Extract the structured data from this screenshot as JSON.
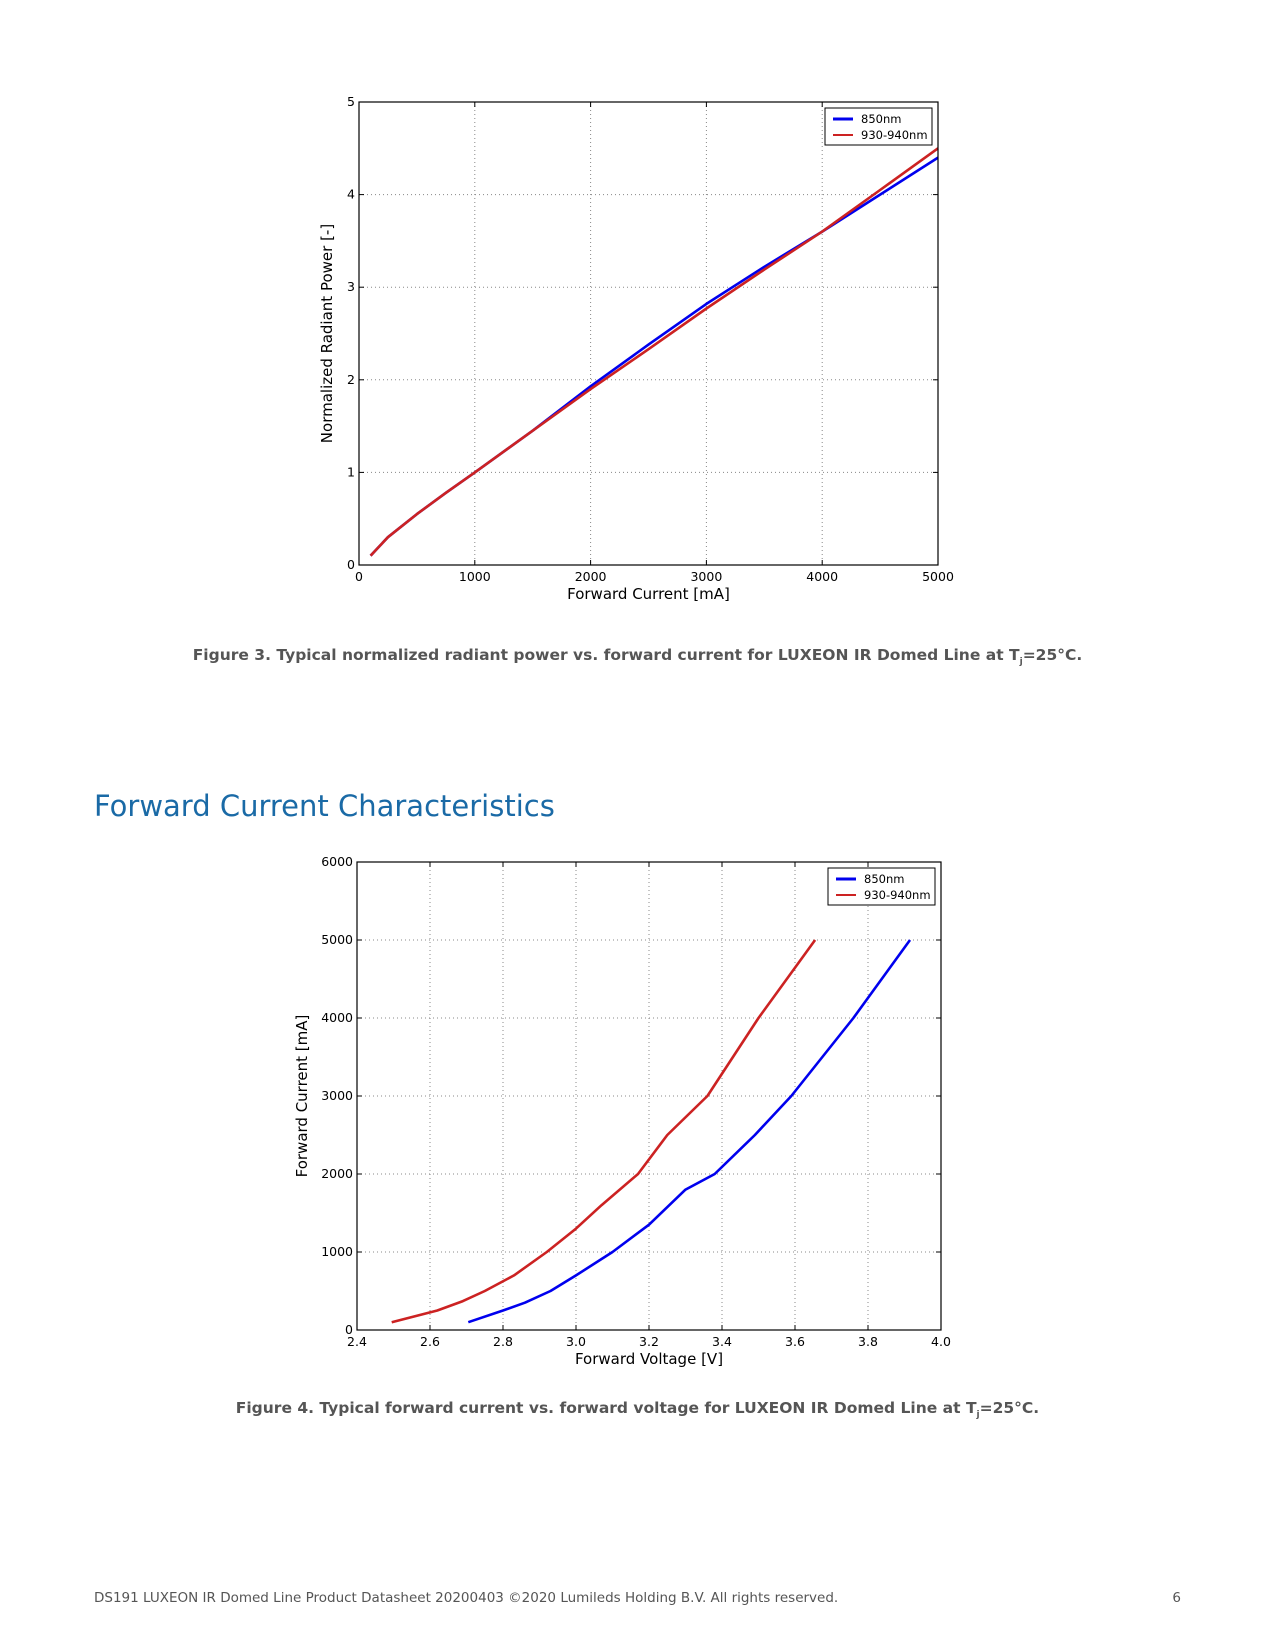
{
  "colors": {
    "accent": "#1a6aa6",
    "caption": "#555555",
    "series_850": "#0000ee",
    "series_930": "#cc2222"
  },
  "section": {
    "title": "Forward Current Characteristics"
  },
  "captions": {
    "fig3": {
      "prefix": "Figure 3. Typical normalized radiant power vs. forward current for LUXEON IR Domed Line at T",
      "sub": "j",
      "suffix": "=25°C."
    },
    "fig4": {
      "prefix": "Figure 4. Typical forward current vs. forward voltage for LUXEON IR Domed Line at T",
      "sub": "j",
      "suffix": "=25°C."
    }
  },
  "footer": {
    "text": "DS191 LUXEON IR Domed Line Product Datasheet  20200403 ©2020 Lumileds Holding B.V. All rights reserved.",
    "page": "6"
  },
  "chart_data": [
    {
      "type": "line",
      "xlabel": "Forward Current [mA]",
      "ylabel": "Normalized Radiant Power [-]",
      "xlim": [
        0,
        5000
      ],
      "ylim": [
        0,
        5
      ],
      "xticks": [
        0,
        1000,
        2000,
        3000,
        4000,
        5000
      ],
      "xtick_labels": [
        "0",
        "1000",
        "2000",
        "3000",
        "4000",
        "5000"
      ],
      "yticks": [
        0,
        1,
        2,
        3,
        4,
        5
      ],
      "ytick_labels": [
        "0",
        "1",
        "2",
        "3",
        "4",
        "5"
      ],
      "grid": true,
      "legend_position": "top-right",
      "series": [
        {
          "name": "850nm",
          "color": "#0000ee",
          "x": [
            100,
            250,
            500,
            750,
            1000,
            1500,
            2000,
            2500,
            3000,
            3500,
            4000,
            4500,
            5000
          ],
          "y": [
            0.1,
            0.3,
            0.55,
            0.78,
            1.0,
            1.45,
            1.93,
            2.38,
            2.82,
            3.22,
            3.6,
            4.0,
            4.4
          ]
        },
        {
          "name": "930-940nm",
          "color": "#cc2222",
          "x": [
            100,
            250,
            500,
            750,
            1000,
            1500,
            2000,
            2500,
            3000,
            3500,
            4000,
            4500,
            5000
          ],
          "y": [
            0.1,
            0.3,
            0.55,
            0.78,
            1.0,
            1.45,
            1.9,
            2.33,
            2.77,
            3.19,
            3.6,
            4.05,
            4.5
          ]
        }
      ]
    },
    {
      "type": "line",
      "xlabel": "Forward Voltage [V]",
      "ylabel": "Forward Current [mA]",
      "xlim": [
        2.4,
        4.0
      ],
      "ylim": [
        0,
        6000
      ],
      "xticks": [
        2.4,
        2.6,
        2.8,
        3.0,
        3.2,
        3.4,
        3.6,
        3.8,
        4.0
      ],
      "xtick_labels": [
        "2.4",
        "2.6",
        "2.8",
        "3.0",
        "3.2",
        "3.4",
        "3.6",
        "3.8",
        "4.0"
      ],
      "yticks": [
        0,
        1000,
        2000,
        3000,
        4000,
        5000,
        6000
      ],
      "ytick_labels": [
        "0",
        "1000",
        "2000",
        "3000",
        "4000",
        "5000",
        "6000"
      ],
      "grid": true,
      "legend_position": "top-right",
      "series": [
        {
          "name": "850nm",
          "color": "#0000ee",
          "x": [
            2.705,
            2.8,
            2.86,
            2.93,
            3.0,
            3.1,
            3.2,
            3.3,
            3.38,
            3.49,
            3.59,
            3.76,
            3.915
          ],
          "y": [
            100,
            250,
            350,
            500,
            700,
            1000,
            1350,
            1800,
            2000,
            2500,
            3000,
            4000,
            5000
          ]
        },
        {
          "name": "930-940nm",
          "color": "#cc2222",
          "x": [
            2.495,
            2.62,
            2.69,
            2.75,
            2.83,
            2.92,
            3.0,
            3.07,
            3.17,
            3.25,
            3.36,
            3.5,
            3.655
          ],
          "y": [
            100,
            250,
            370,
            500,
            700,
            1000,
            1300,
            1600,
            2000,
            2500,
            3000,
            4000,
            5000
          ]
        }
      ]
    }
  ]
}
